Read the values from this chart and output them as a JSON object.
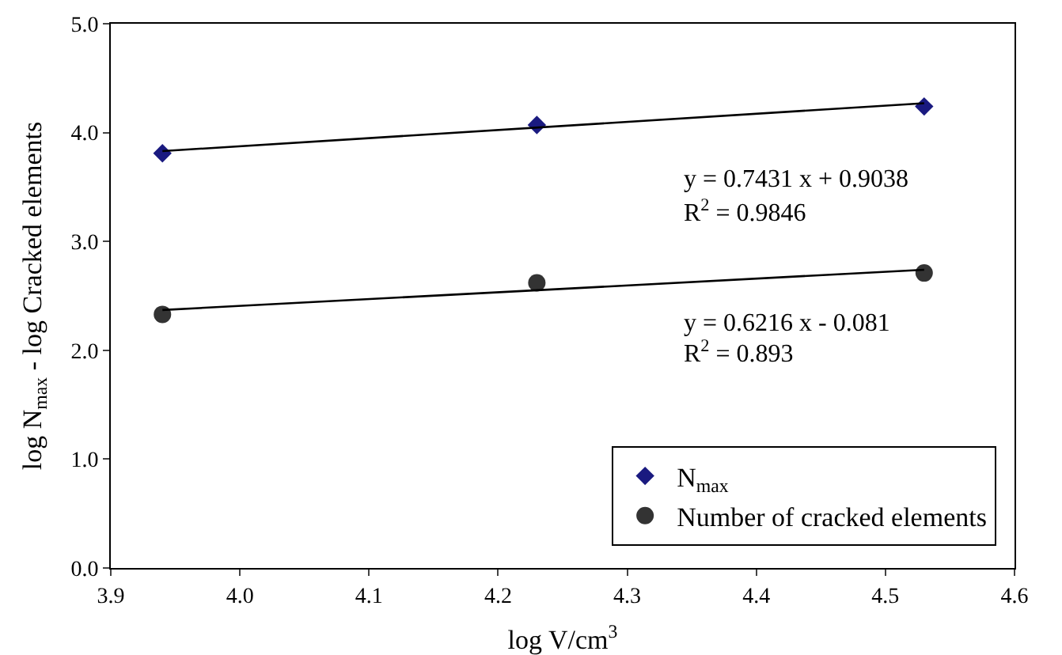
{
  "chart_data": {
    "type": "scatter",
    "xlabel": "log V/cm$^{3}$",
    "ylabel": "log N$_{max}$ - log Cracked elements",
    "xlim": [
      3.9,
      4.6
    ],
    "xticks": [
      {
        "value": 3.9,
        "label": "3.9"
      },
      {
        "value": 4.0,
        "label": "4.0"
      },
      {
        "value": 4.1,
        "label": "4.1"
      },
      {
        "value": 4.2,
        "label": "4.2"
      },
      {
        "value": 4.3,
        "label": "4.3"
      },
      {
        "value": 4.4,
        "label": "4.4"
      },
      {
        "value": 4.5,
        "label": "4.5"
      },
      {
        "value": 4.6,
        "label": "4.6"
      }
    ],
    "ylim": [
      0,
      5
    ],
    "yticks": [
      {
        "value": 0,
        "label": "0.0"
      },
      {
        "value": 1,
        "label": "1.0"
      },
      {
        "value": 2,
        "label": "2.0"
      },
      {
        "value": 3,
        "label": "3.0"
      },
      {
        "value": 4,
        "label": "4.0"
      },
      {
        "value": 5,
        "label": "5.0"
      }
    ],
    "grid": false,
    "legend": "bottom right",
    "series": [
      {
        "name": "N$_{max}$",
        "type": "scatter",
        "marker": "diamond",
        "color": "#1a1a80",
        "x": [
          3.94,
          4.23,
          4.53
        ],
        "values": [
          3.81,
          4.07,
          4.24
        ]
      },
      {
        "name": "Number of cracked elements",
        "type": "scatter",
        "marker": "circle",
        "color": "#333333",
        "x": [
          3.94,
          4.23,
          4.53
        ],
        "values": [
          2.33,
          2.62,
          2.71
        ]
      },
      {
        "type": "line",
        "marker": "none",
        "line_style": "solid",
        "color": "#000000",
        "x": [
          3.94,
          4.53
        ],
        "values": [
          3.83,
          4.27
        ]
      },
      {
        "type": "line",
        "marker": "none",
        "line_style": "solid",
        "color": "#000000",
        "x": [
          3.94,
          4.53
        ],
        "values": [
          2.37,
          2.74
        ]
      }
    ],
    "annotations": [
      "y = 0.7431 x + 0.9038",
      "R$^{2}$ = 0.9846",
      "y = 0.6216 x - 0.081",
      "R$^{2}$ = 0.893"
    ]
  }
}
